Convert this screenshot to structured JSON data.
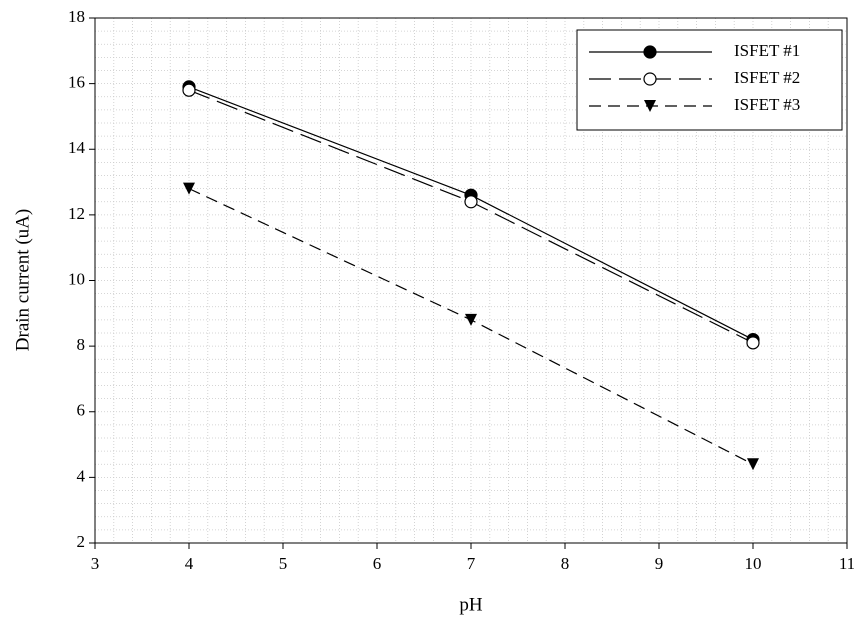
{
  "chart_data": {
    "type": "line",
    "xlabel": "pH",
    "ylabel": "Drain current (uA)",
    "x": [
      4,
      7,
      10
    ],
    "series": [
      {
        "name": "ISFET #1",
        "color": "#000000",
        "marker": "filled-circle",
        "dash": "solid",
        "values": [
          15.9,
          12.6,
          8.2
        ]
      },
      {
        "name": "ISFET #2",
        "color": "#000000",
        "marker": "open-circle",
        "dash": "long-dash",
        "values": [
          15.8,
          12.4,
          8.1
        ]
      },
      {
        "name": "ISFET #3",
        "color": "#000000",
        "marker": "filled-triangle-down",
        "dash": "dash",
        "values": [
          12.8,
          8.8,
          4.4
        ]
      }
    ],
    "xlim": [
      3,
      11
    ],
    "xticks": [
      3,
      4,
      5,
      6,
      7,
      8,
      9,
      10,
      11
    ],
    "ylim": [
      2,
      18
    ],
    "yticks": [
      2,
      4,
      6,
      8,
      10,
      12,
      14,
      16,
      18
    ],
    "grid": true,
    "legend": "upper-right"
  }
}
